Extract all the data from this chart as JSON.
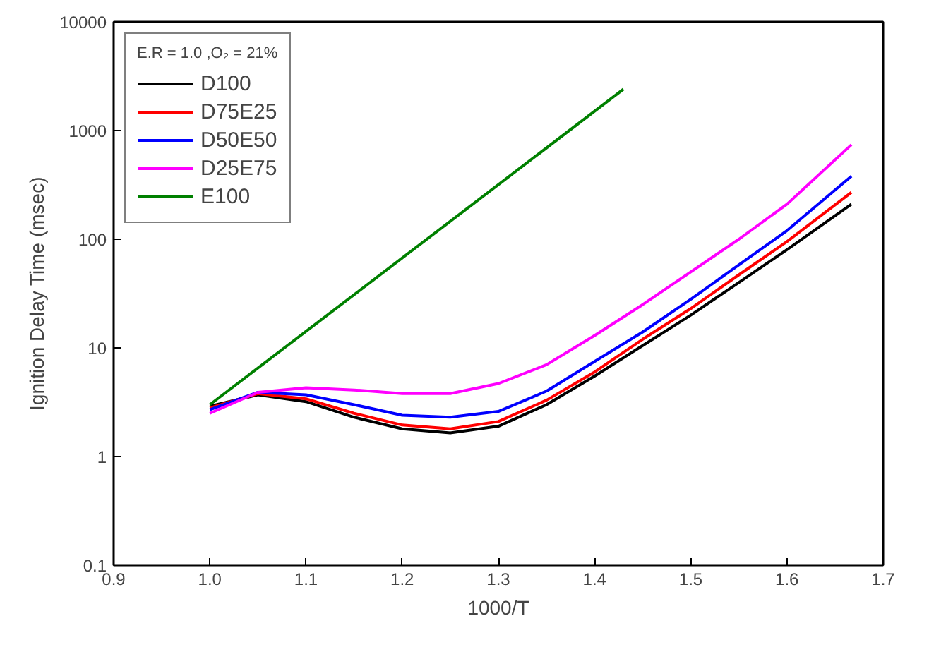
{
  "chart_data": {
    "type": "line",
    "xlabel": "1000/T",
    "ylabel": "Ignition Delay Time (msec)",
    "legend_title": "E.R = 1.0 ,O₂ = 21%",
    "legend": "top left",
    "log": "y",
    "grid": false,
    "x": [
      1.0,
      1.05,
      1.1,
      1.15,
      1.2,
      1.25,
      1.3,
      1.35,
      1.4,
      1.45,
      1.5,
      1.55,
      1.6,
      1.667
    ],
    "xlim": [
      0.9,
      1.7
    ],
    "xticks": [
      {
        "value": 0.9,
        "label": "0.9"
      },
      {
        "value": 1.0,
        "label": "1.0"
      },
      {
        "value": 1.1,
        "label": "1.1"
      },
      {
        "value": 1.2,
        "label": "1.2"
      },
      {
        "value": 1.3,
        "label": "1.3"
      },
      {
        "value": 1.4,
        "label": "1.4"
      },
      {
        "value": 1.5,
        "label": "1.5"
      },
      {
        "value": 1.6,
        "label": "1.6"
      },
      {
        "value": 1.7,
        "label": "1.7"
      }
    ],
    "ylim": [
      0.1,
      10000
    ],
    "yticks": [
      0.1,
      1,
      10,
      100,
      1000,
      10000
    ],
    "series": [
      {
        "name": "D100",
        "color": "#000000",
        "values": [
          2.9,
          3.7,
          3.2,
          2.3,
          1.8,
          1.65,
          1.9,
          3,
          5.5,
          10.5,
          20,
          40,
          80,
          210
        ]
      },
      {
        "name": "D75E25",
        "color": "#ff0000",
        "values": [
          2.8,
          3.8,
          3.4,
          2.5,
          1.95,
          1.8,
          2.1,
          3.3,
          6,
          12,
          23,
          47,
          95,
          270
        ]
      },
      {
        "name": "D50E50",
        "color": "#0000ff",
        "values": [
          2.7,
          3.9,
          3.7,
          3.0,
          2.4,
          2.3,
          2.6,
          4,
          7.5,
          14,
          28,
          58,
          120,
          380
        ]
      },
      {
        "name": "D25E75",
        "color": "#ff00ff",
        "values": [
          2.5,
          3.9,
          4.3,
          4.1,
          3.8,
          3.8,
          4.7,
          7,
          13,
          25,
          50,
          100,
          210,
          740
        ]
      },
      {
        "name": "E100",
        "color": "#008000",
        "x": [
          1.0,
          1.43
        ],
        "values": [
          3,
          2400
        ]
      }
    ]
  }
}
